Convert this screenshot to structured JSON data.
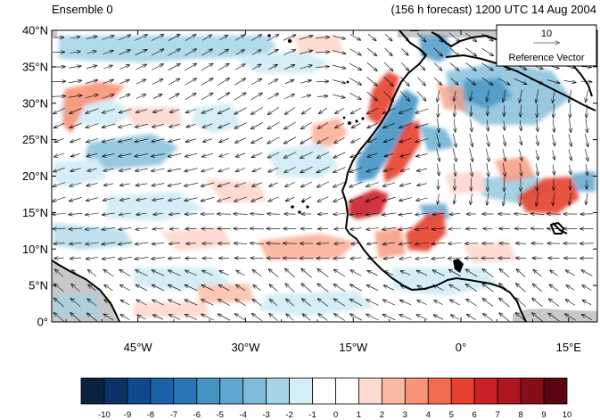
{
  "header": {
    "left_title": "Ensemble 0",
    "right_title": "(156 h forecast) 1200 UTC 14 Aug 2004"
  },
  "map": {
    "projection": "cylindrical-equidistant",
    "lon_range": [
      -57,
      19
    ],
    "lat_range": [
      0,
      40
    ],
    "lat_ticks": [
      "0°",
      "5°N",
      "10°N",
      "15°N",
      "20°N",
      "25°N",
      "30°N",
      "35°N",
      "40°N"
    ],
    "lon_ticks": [
      "45°W",
      "30°W",
      "15°W",
      "0°",
      "15°E"
    ],
    "land_mask_color": "#c8c8c8",
    "coastline_color": "#000000"
  },
  "reference_vector": {
    "magnitude_label": "10",
    "caption": "Reference Vector"
  },
  "colorbar": {
    "labels": [
      "-10",
      "-9",
      "-8",
      "-7",
      "-6",
      "-5",
      "-4",
      "-3",
      "-2",
      "-1",
      "0",
      "1",
      "2",
      "3",
      "4",
      "5",
      "6",
      "7",
      "8",
      "9",
      "10"
    ],
    "colors": [
      "#08223f",
      "#0b3166",
      "#104a8e",
      "#1a62a8",
      "#2b76b7",
      "#4393c3",
      "#5ea7d0",
      "#7ebcd9",
      "#a3d3e4",
      "#d4edf6",
      "#ffffff",
      "#ffffff",
      "#fddbd2",
      "#fbb9a4",
      "#f89378",
      "#f26b51",
      "#e6412f",
      "#cc2027",
      "#b0161f",
      "#870e17",
      "#5a0510"
    ]
  }
}
